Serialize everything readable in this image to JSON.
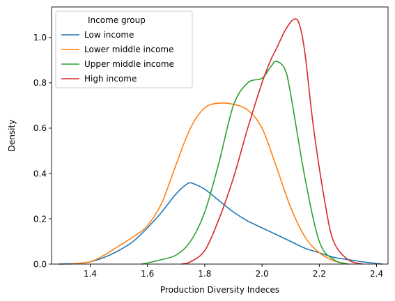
{
  "chart_data": {
    "type": "line",
    "title": "",
    "xlabel": "Production Diversity Indeces",
    "ylabel": "Density",
    "xlim": [
      1.265,
      2.44
    ],
    "ylim": [
      0.0,
      1.135
    ],
    "xticks": [
      1.4,
      1.6,
      1.8,
      2.0,
      2.2,
      2.4
    ],
    "xtick_labels": [
      "1.4",
      "1.6",
      "1.8",
      "2.0",
      "2.2",
      "2.4"
    ],
    "yticks": [
      0.0,
      0.2,
      0.4,
      0.6,
      0.8,
      1.0
    ],
    "ytick_labels": [
      "0.0",
      "0.2",
      "0.4",
      "0.6",
      "0.8",
      "1.0"
    ],
    "grid": false,
    "legend": {
      "title": "Income group",
      "placement": "top-left"
    },
    "series": [
      {
        "name": "Low income",
        "color": "#1f77b4",
        "points": [
          [
            1.29,
            0.0
          ],
          [
            1.35,
            0.002
          ],
          [
            1.4,
            0.01
          ],
          [
            1.45,
            0.03
          ],
          [
            1.5,
            0.06
          ],
          [
            1.55,
            0.1
          ],
          [
            1.6,
            0.16
          ],
          [
            1.65,
            0.23
          ],
          [
            1.7,
            0.31
          ],
          [
            1.74,
            0.355
          ],
          [
            1.76,
            0.355
          ],
          [
            1.8,
            0.33
          ],
          [
            1.85,
            0.28
          ],
          [
            1.9,
            0.23
          ],
          [
            1.95,
            0.19
          ],
          [
            2.0,
            0.16
          ],
          [
            2.05,
            0.13
          ],
          [
            2.1,
            0.1
          ],
          [
            2.15,
            0.07
          ],
          [
            2.2,
            0.05
          ],
          [
            2.25,
            0.03
          ],
          [
            2.3,
            0.02
          ],
          [
            2.35,
            0.01
          ],
          [
            2.42,
            0.0
          ]
        ]
      },
      {
        "name": "Lower middle income",
        "color": "#ff7f0e",
        "points": [
          [
            1.33,
            0.0
          ],
          [
            1.4,
            0.01
          ],
          [
            1.45,
            0.04
          ],
          [
            1.5,
            0.08
          ],
          [
            1.55,
            0.12
          ],
          [
            1.6,
            0.17
          ],
          [
            1.65,
            0.27
          ],
          [
            1.7,
            0.44
          ],
          [
            1.75,
            0.6
          ],
          [
            1.8,
            0.69
          ],
          [
            1.85,
            0.71
          ],
          [
            1.9,
            0.705
          ],
          [
            1.95,
            0.68
          ],
          [
            2.0,
            0.6
          ],
          [
            2.05,
            0.43
          ],
          [
            2.1,
            0.25
          ],
          [
            2.15,
            0.12
          ],
          [
            2.2,
            0.05
          ],
          [
            2.25,
            0.015
          ],
          [
            2.3,
            0.0
          ]
        ]
      },
      {
        "name": "Upper middle income",
        "color": "#2ca02c",
        "points": [
          [
            1.58,
            0.0
          ],
          [
            1.6,
            0.005
          ],
          [
            1.65,
            0.02
          ],
          [
            1.7,
            0.04
          ],
          [
            1.75,
            0.1
          ],
          [
            1.8,
            0.23
          ],
          [
            1.85,
            0.45
          ],
          [
            1.9,
            0.7
          ],
          [
            1.95,
            0.8
          ],
          [
            2.0,
            0.82
          ],
          [
            2.03,
            0.87
          ],
          [
            2.05,
            0.895
          ],
          [
            2.08,
            0.86
          ],
          [
            2.1,
            0.75
          ],
          [
            2.15,
            0.38
          ],
          [
            2.2,
            0.1
          ],
          [
            2.25,
            0.02
          ],
          [
            2.3,
            0.0
          ]
        ]
      },
      {
        "name": "High income",
        "color": "#d62728",
        "points": [
          [
            1.72,
            0.0
          ],
          [
            1.75,
            0.01
          ],
          [
            1.8,
            0.06
          ],
          [
            1.85,
            0.2
          ],
          [
            1.9,
            0.38
          ],
          [
            1.95,
            0.6
          ],
          [
            2.0,
            0.8
          ],
          [
            2.03,
            0.9
          ],
          [
            2.05,
            0.95
          ],
          [
            2.08,
            1.03
          ],
          [
            2.11,
            1.08
          ],
          [
            2.13,
            1.06
          ],
          [
            2.15,
            0.93
          ],
          [
            2.18,
            0.6
          ],
          [
            2.22,
            0.27
          ],
          [
            2.25,
            0.1
          ],
          [
            2.3,
            0.02
          ],
          [
            2.35,
            0.0
          ]
        ]
      }
    ]
  }
}
